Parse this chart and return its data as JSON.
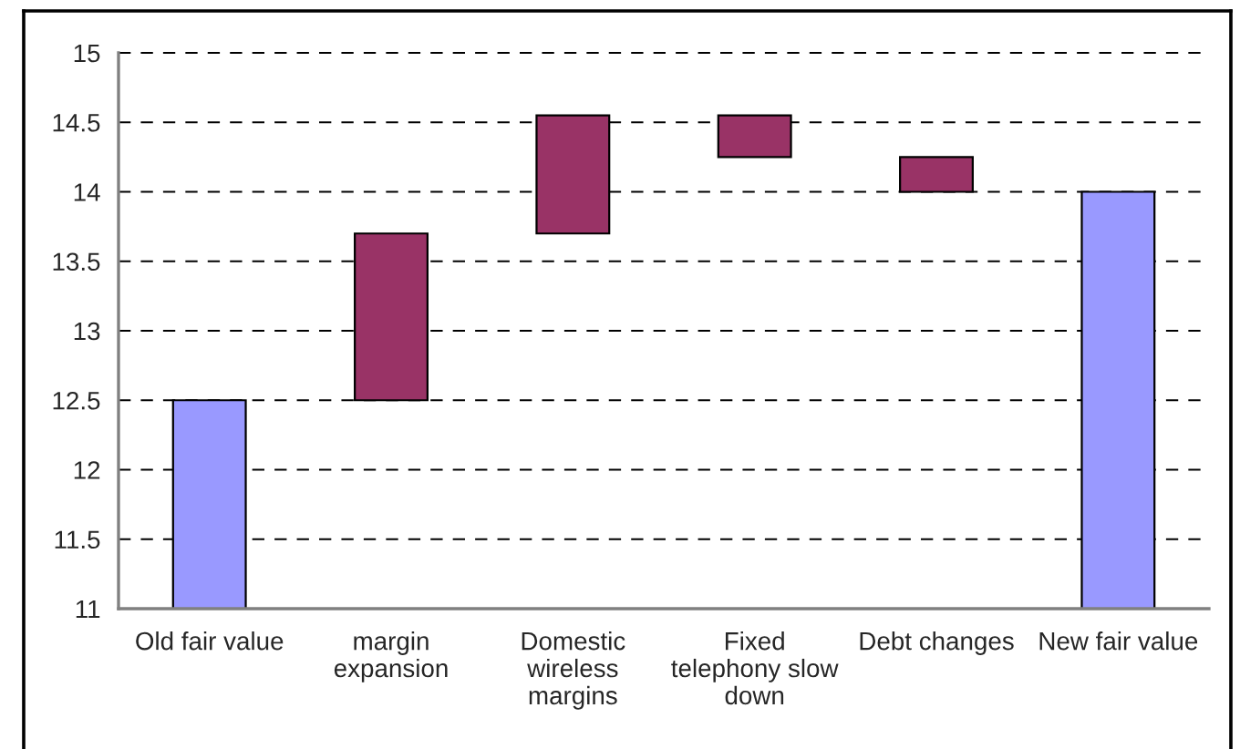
{
  "chart_data": {
    "type": "bar",
    "categories": [
      "Old fair value",
      "margin expansion",
      "Domestic wireless margins",
      "Fixed telephony slow down",
      "Debt changes",
      "New fair value"
    ],
    "base": [
      null,
      12.5,
      13.7,
      14.55,
      14.25,
      null
    ],
    "values": [
      12.5,
      1.2,
      0.85,
      -0.3,
      -0.25,
      14
    ],
    "colors": [
      "#9999ff",
      "#993366",
      "#993366",
      "#993366",
      "#993366",
      "#9999ff"
    ],
    "ylim": [
      11,
      15
    ],
    "yticks": [
      11,
      11.5,
      12,
      12.5,
      13,
      13.5,
      14,
      14.5,
      15
    ],
    "grid": "y"
  }
}
